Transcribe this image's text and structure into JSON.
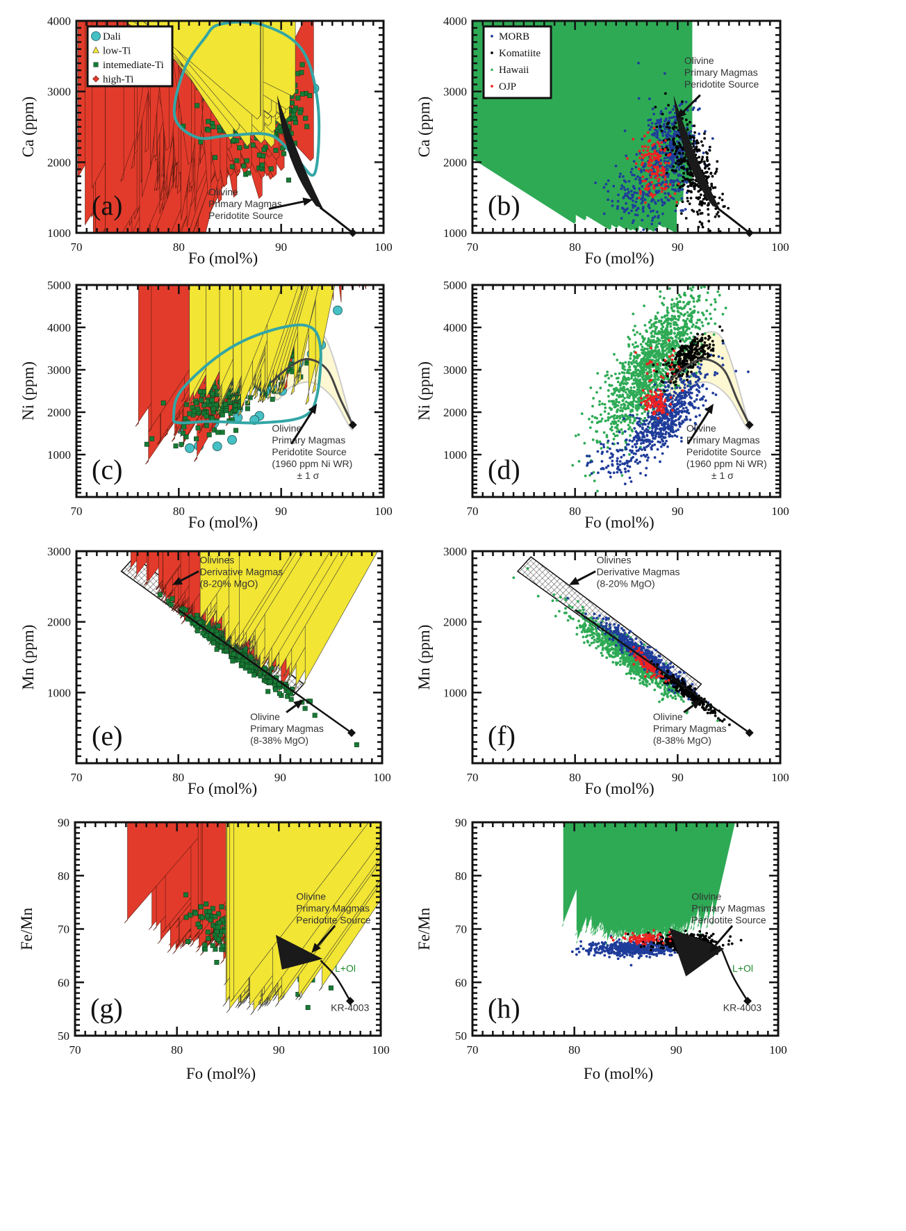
{
  "chart_data": [
    {
      "id": "a",
      "panel_label": "(a)",
      "type": "scatter",
      "xlabel": "Fo (mol%)",
      "ylabel": "Ca (ppm)",
      "xlim": [
        70,
        100
      ],
      "ylim": [
        1000,
        4000
      ],
      "xticks": [
        70,
        80,
        90,
        100
      ],
      "yticks": [
        1000,
        2000,
        3000,
        4000
      ],
      "yminor": 100,
      "legend": {
        "position": "top-left",
        "entries": [
          "Dali",
          "low-Ti",
          "intemediate-Ti",
          "high-Ti"
        ]
      },
      "annotations": {
        "model": [
          "Olivine",
          "Primary Magmas",
          "Peridotite Source"
        ]
      },
      "series": [
        {
          "name": "Dali",
          "marker": "circle",
          "color": "#45c0c4",
          "clusters": [
            {
              "x": [
                87.5,
                2.2
              ],
              "y": [
                3150,
                420
              ],
              "n": 220
            }
          ]
        },
        {
          "name": "high-Ti",
          "marker": "diamond",
          "color": "#e23b2b",
          "clusters": [
            {
              "x": [
                85,
                2.6
              ],
              "y": [
                2350,
                330
              ],
              "n": 420
            },
            {
              "x": [
                80.5,
                2
              ],
              "y": [
                1900,
                250
              ],
              "n": 40
            }
          ]
        },
        {
          "name": "intemediate-Ti",
          "marker": "square",
          "color": "#187a35",
          "clusters": [
            {
              "x": [
                87.8,
                2.2
              ],
              "y": [
                2850,
                400
              ],
              "n": 420
            }
          ]
        },
        {
          "name": "low-Ti",
          "marker": "triangle",
          "color": "#f2e533",
          "clusters": [
            {
              "x": [
                88.5,
                1.3
              ],
              "y": [
                2650,
                200
              ],
              "n": 70
            }
          ]
        }
      ]
    },
    {
      "id": "b",
      "panel_label": "(b)",
      "type": "scatter",
      "xlabel": "Fo (mol%)",
      "ylabel": "Ca (ppm)",
      "xlim": [
        70,
        100
      ],
      "ylim": [
        1000,
        4000
      ],
      "xticks": [
        70,
        80,
        90,
        100
      ],
      "yticks": [
        1000,
        2000,
        3000,
        4000
      ],
      "yminor": 100,
      "legend": {
        "position": "top-left",
        "entries": [
          "MORB",
          "Komatiite",
          "Hawaii",
          "OJP"
        ]
      },
      "annotations": {
        "model": [
          "Olivine",
          "Primary Magmas",
          "Peridotite Source"
        ]
      },
      "series": [
        {
          "name": "Hawaii",
          "marker": "smalltri",
          "color": "#2eaa55",
          "clusters": [
            {
              "x": [
                85.5,
                2.2
              ],
              "y": [
                2150,
                450
              ],
              "n": 1300
            },
            {
              "x": [
                86.5,
                1.5
              ],
              "y": [
                1450,
                200
              ],
              "n": 450
            }
          ]
        },
        {
          "name": "MORB",
          "marker": "dot",
          "color": "#1f3c9a",
          "clusters": [
            {
              "x": [
                89.5,
                1.2
              ],
              "y": [
                2250,
                300
              ],
              "n": 380
            },
            {
              "x": [
                87,
                2
              ],
              "y": [
                1600,
                250
              ],
              "n": 220
            }
          ]
        },
        {
          "name": "Komatiite",
          "marker": "dot",
          "color": "#000000",
          "clusters": [
            {
              "x": [
                91.5,
                1.3
              ],
              "y": [
                1900,
                300
              ],
              "n": 380,
              "slope": -180
            }
          ]
        },
        {
          "name": "OJP",
          "marker": "dot",
          "color": "#ee2222",
          "clusters": [
            {
              "x": [
                87.5,
                0.8
              ],
              "y": [
                2050,
                150
              ],
              "n": 110
            },
            {
              "x": [
                88,
                1.0
              ],
              "y": [
                1650,
                100
              ],
              "n": 40
            }
          ]
        }
      ]
    },
    {
      "id": "c",
      "panel_label": "(c)",
      "type": "scatter",
      "xlabel": "Fo (mol%)",
      "ylabel": "Ni (ppm)",
      "xlim": [
        70,
        100
      ],
      "ylim": [
        0,
        5000
      ],
      "xticks": [
        70,
        80,
        90,
        100
      ],
      "yticks": [
        1000,
        2000,
        3000,
        4000,
        5000
      ],
      "yminor": 100,
      "annotations": {
        "model": [
          "Olivine",
          "Primary Magmas",
          "Peridotite Source",
          "(1960 ppm Ni WR)",
          "± 1 σ"
        ]
      },
      "series": [
        {
          "name": "Dali",
          "marker": "circle",
          "color": "#45c0c4",
          "clusters": [
            {
              "x": [
                87,
                3
              ],
              "y": [
                2900,
                420
              ],
              "n": 140,
              "slope": 180
            }
          ]
        },
        {
          "name": "high-Ti",
          "marker": "diamond",
          "color": "#e23b2b",
          "clusters": [
            {
              "x": [
                85,
                3
              ],
              "y": [
                2700,
                380
              ],
              "n": 380,
              "slope": 180
            }
          ]
        },
        {
          "name": "intemediate-Ti",
          "marker": "square",
          "color": "#187a35",
          "clusters": [
            {
              "x": [
                86.5,
                3
              ],
              "y": [
                2700,
                330
              ],
              "n": 330,
              "slope": 150
            }
          ]
        },
        {
          "name": "low-Ti",
          "marker": "triangle",
          "color": "#f2e533",
          "clusters": [
            {
              "x": [
                87,
                2.5
              ],
              "y": [
                2350,
                200
              ],
              "n": 60
            }
          ]
        }
      ]
    },
    {
      "id": "d",
      "panel_label": "(d)",
      "type": "scatter",
      "xlabel": "Fo (mol%)",
      "ylabel": "Ni (ppm)",
      "xlim": [
        70,
        100
      ],
      "ylim": [
        0,
        5000
      ],
      "xticks": [
        70,
        80,
        90,
        100
      ],
      "yticks": [
        1000,
        2000,
        3000,
        4000,
        5000
      ],
      "yminor": 100,
      "annotations": {
        "model": [
          "Olivine",
          "Primary Magmas",
          "Peridotite Source",
          "(1960 ppm Ni WR)",
          "± 1 σ"
        ]
      },
      "series": [
        {
          "name": "Hawaii",
          "marker": "dot",
          "color": "#2eaa55",
          "clusters": [
            {
              "x": [
                87.5,
                2.5
              ],
              "y": [
                3100,
                550
              ],
              "n": 1400,
              "slope": 250
            }
          ]
        },
        {
          "name": "MORB",
          "marker": "dot",
          "color": "#1f3c9a",
          "clusters": [
            {
              "x": [
                89,
                2
              ],
              "y": [
                1950,
                350
              ],
              "n": 650,
              "slope": 200
            },
            {
              "x": [
                84,
                1.5
              ],
              "y": [
                800,
                200
              ],
              "n": 60
            }
          ]
        },
        {
          "name": "Komatiite",
          "marker": "dot",
          "color": "#000000",
          "clusters": [
            {
              "x": [
                91,
                1.2
              ],
              "y": [
                3300,
                200
              ],
              "n": 280,
              "slope": 150
            }
          ]
        },
        {
          "name": "OJP",
          "marker": "dot",
          "color": "#ee2222",
          "clusters": [
            {
              "x": [
                87.8,
                0.6
              ],
              "y": [
                2250,
                150
              ],
              "n": 100
            },
            {
              "x": [
                88.5,
                1.2
              ],
              "y": [
                3000,
                300
              ],
              "n": 30
            }
          ]
        }
      ]
    },
    {
      "id": "e",
      "panel_label": "(e)",
      "type": "scatter",
      "xlabel": "Fo (mol%)",
      "ylabel": "Mn (ppm)",
      "xlim": [
        70,
        100
      ],
      "ylim": [
        0,
        3000
      ],
      "xticks": [
        70,
        80,
        90,
        100
      ],
      "yticks": [
        1000,
        2000,
        3000
      ],
      "yminor": 100,
      "annotations": {
        "derivative": [
          "Olivines",
          "Derivative Magmas",
          "(8-20% MgO)"
        ],
        "model": [
          "Olivine",
          "Primary Magmas",
          "(8-38% MgO)"
        ]
      },
      "series": [
        {
          "name": "high-Ti",
          "marker": "diamond",
          "color": "#e23b2b",
          "clusters": [
            {
              "x": [
                83,
                2.5
              ],
              "y": [
                1870,
                60
              ],
              "n": 330,
              "slope": -110
            }
          ]
        },
        {
          "name": "intemediate-Ti",
          "marker": "square",
          "color": "#187a35",
          "clusters": [
            {
              "x": [
                86,
                2.8
              ],
              "y": [
                1530,
                60
              ],
              "n": 330,
              "slope": -110
            }
          ]
        },
        {
          "name": "low-Ti",
          "marker": "triangle",
          "color": "#f2e533",
          "clusters": [
            {
              "x": [
                87,
                2.2
              ],
              "y": [
                1560,
                110
              ],
              "n": 80,
              "slope": -110
            }
          ]
        }
      ]
    },
    {
      "id": "f",
      "panel_label": "(f)",
      "type": "scatter",
      "xlabel": "Fo (mol%)",
      "ylabel": "Mn (ppm)",
      "xlim": [
        70,
        100
      ],
      "ylim": [
        0,
        3000
      ],
      "xticks": [
        70,
        80,
        90,
        100
      ],
      "yticks": [
        1000,
        2000,
        3000
      ],
      "yminor": 100,
      "annotations": {
        "derivative": [
          "Olivines",
          "Derivative Magmas",
          "(8-20% MgO)"
        ],
        "model": [
          "Olivine",
          "Primary Magmas",
          "(8-38% MgO)"
        ]
      },
      "series": [
        {
          "name": "Hawaii",
          "marker": "dot",
          "color": "#2eaa55",
          "clusters": [
            {
              "x": [
                85,
                2.5
              ],
              "y": [
                1530,
                110
              ],
              "n": 850,
              "slope": -110
            }
          ]
        },
        {
          "name": "MORB",
          "marker": "dot",
          "color": "#1f3c9a",
          "clusters": [
            {
              "x": [
                87,
                2.2
              ],
              "y": [
                1490,
                70
              ],
              "n": 550,
              "slope": -110
            }
          ]
        },
        {
          "name": "Komatiite",
          "marker": "dot",
          "color": "#000000",
          "clusters": [
            {
              "x": [
                91,
                1.5
              ],
              "y": [
                1010,
                50
              ],
              "n": 280,
              "slope": -110
            }
          ]
        },
        {
          "name": "OJP",
          "marker": "dot",
          "color": "#ee2222",
          "clusters": [
            {
              "x": [
                87,
                0.8
              ],
              "y": [
                1400,
                60
              ],
              "n": 100,
              "slope": -110
            }
          ]
        }
      ]
    },
    {
      "id": "g",
      "panel_label": "(g)",
      "type": "scatter",
      "xlabel": "Fo (mol%)",
      "ylabel": "Fe/Mn",
      "xlim": [
        70,
        100
      ],
      "ylim": [
        50,
        90
      ],
      "xticks": [
        70,
        80,
        90,
        100
      ],
      "yticks": [
        50,
        60,
        70,
        80,
        90
      ],
      "yminor": 1,
      "annotations": {
        "model": [
          "Olivine",
          "Primary Magmas",
          "Peridotite Source"
        ],
        "field": "L+Ol",
        "sample": "KR-4003"
      },
      "series": [
        {
          "name": "high-Ti",
          "marker": "diamond",
          "color": "#e23b2b",
          "clusters": [
            {
              "x": [
                84,
                2.2
              ],
              "y": [
                70,
                2.2
              ],
              "n": 330
            }
          ]
        },
        {
          "name": "intemediate-Ti",
          "marker": "square",
          "color": "#187a35",
          "clusters": [
            {
              "x": [
                87,
                2.8
              ],
              "y": [
                67,
                2.3
              ],
              "n": 330,
              "slope": -0.8
            }
          ]
        },
        {
          "name": "low-Ti",
          "marker": "triangle",
          "color": "#f2e533",
          "clusters": [
            {
              "x": [
                88,
                1.8
              ],
              "y": [
                56.8,
                1.3
              ],
              "n": 90
            }
          ]
        }
      ]
    },
    {
      "id": "h",
      "panel_label": "(h)",
      "type": "scatter",
      "xlabel": "Fo (mol%)",
      "ylabel": "Fe/Mn",
      "xlim": [
        70,
        100
      ],
      "ylim": [
        50,
        90
      ],
      "xticks": [
        70,
        80,
        90,
        100
      ],
      "yticks": [
        50,
        60,
        70,
        80,
        90
      ],
      "yminor": 1,
      "annotations": {
        "model": [
          "Olivine",
          "Primary Magmas",
          "Peridotite Source"
        ],
        "field": "L+Ol",
        "sample": "KR-4003"
      },
      "series": [
        {
          "name": "Hawaii",
          "marker": "smalltri",
          "color": "#2eaa55",
          "clusters": [
            {
              "x": [
                86.5,
                2.3
              ],
              "y": [
                70,
                1
              ],
              "n": 850
            }
          ]
        },
        {
          "name": "MORB",
          "marker": "dot",
          "color": "#1f3c9a",
          "clusters": [
            {
              "x": [
                86,
                2.5
              ],
              "y": [
                66.3,
                0.7
              ],
              "n": 480
            }
          ]
        },
        {
          "name": "Komatiite",
          "marker": "dot",
          "color": "#000000",
          "clusters": [
            {
              "x": [
                91,
                1.6
              ],
              "y": [
                67.6,
                0.7
              ],
              "n": 380
            }
          ]
        },
        {
          "name": "OJP",
          "marker": "dot",
          "color": "#ee2222",
          "clusters": [
            {
              "x": [
                87,
                1.2
              ],
              "y": [
                68.2,
                0.5
              ],
              "n": 80
            }
          ]
        }
      ]
    }
  ]
}
